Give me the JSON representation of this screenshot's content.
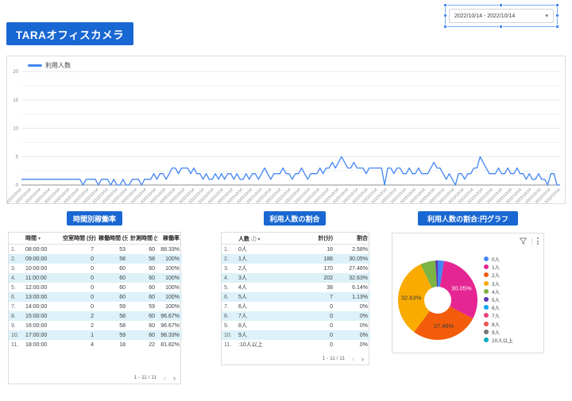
{
  "header": {
    "title": "TARAオフィスカメラ",
    "date_range_value": "2022/10/14 - 2022/10/14"
  },
  "colors": {
    "accent_blue": "#1967D2",
    "line_series": "#4285F4",
    "table_alt_row": "#DDF1F8",
    "axis_text": "#80868B"
  },
  "chart_data": [
    {
      "id": "usage-line",
      "type": "line",
      "legend_position": "top-left",
      "grid": true,
      "ylim": [
        0,
        20
      ],
      "yticks": [
        0,
        5,
        10,
        15,
        20
      ],
      "x_tick_label": "2022/10/14",
      "x_tick_count": 57,
      "series": [
        {
          "name": "利用人数",
          "color": "#4285F4",
          "values": [
            1,
            1,
            1,
            1,
            1,
            1,
            1,
            1,
            1,
            1,
            1,
            1,
            1,
            1,
            1,
            1,
            1,
            1,
            1,
            1,
            0,
            1,
            1,
            1,
            1,
            0,
            1,
            1,
            1,
            0,
            1,
            0,
            0,
            1,
            0,
            0,
            1,
            1,
            1,
            0,
            1,
            1,
            1,
            2,
            1,
            2,
            2,
            1,
            2,
            3,
            3,
            2,
            3,
            3,
            3,
            2,
            3,
            2,
            2,
            1,
            2,
            1,
            1,
            2,
            1,
            2,
            1,
            2,
            2,
            1,
            2,
            1,
            1,
            2,
            1,
            2,
            2,
            1,
            2,
            3,
            2,
            1,
            2,
            2,
            2,
            3,
            2,
            2,
            1,
            2,
            2,
            3,
            2,
            1,
            2,
            2,
            2,
            3,
            2,
            3,
            3,
            4,
            3,
            4,
            5,
            4,
            3,
            3,
            4,
            3,
            3,
            3,
            2,
            3,
            3,
            3,
            3,
            3,
            0,
            3,
            3,
            2,
            3,
            3,
            2,
            2,
            3,
            2,
            2,
            3,
            2,
            2,
            2,
            3,
            4,
            3,
            3,
            2,
            1,
            2,
            1,
            0,
            2,
            2,
            1,
            2,
            2,
            3,
            3,
            5,
            4,
            3,
            2,
            2,
            2,
            3,
            2,
            2,
            3,
            2,
            2,
            3,
            2,
            2,
            1,
            2,
            1,
            1,
            2,
            1,
            1,
            0,
            2,
            2,
            0,
            0
          ]
        }
      ]
    },
    {
      "id": "occupancy-table",
      "type": "table",
      "title": "時間別稼働率",
      "columns": [
        "時間",
        "空室時間 (分)",
        "稼働時間 (分)",
        "計測時間 (分)",
        "稼働率"
      ],
      "rows": [
        [
          "08:00:00",
          "7",
          "53",
          "60",
          "88.33%"
        ],
        [
          "09:00:00",
          "0",
          "58",
          "58",
          "100%"
        ],
        [
          "10:00:00",
          "0",
          "60",
          "60",
          "100%"
        ],
        [
          "11:00:00",
          "0",
          "60",
          "60",
          "100%"
        ],
        [
          "12:00:00",
          "0",
          "60",
          "60",
          "100%"
        ],
        [
          "13:00:00",
          "0",
          "60",
          "60",
          "100%"
        ],
        [
          "14:00:00",
          "0",
          "59",
          "59",
          "100%"
        ],
        [
          "15:00:00",
          "2",
          "58",
          "60",
          "96.67%"
        ],
        [
          "16:00:00",
          "2",
          "58",
          "60",
          "96.67%"
        ],
        [
          "17:00:00",
          "1",
          "59",
          "60",
          "98.33%"
        ],
        [
          "18:00:00",
          "4",
          "18",
          "22",
          "81.82%"
        ]
      ],
      "pagination": "1 - 11 / 11"
    },
    {
      "id": "usage-share-table",
      "type": "table",
      "title": "利用人数の割合",
      "columns": [
        "人数",
        "計(分)",
        "割合"
      ],
      "rows": [
        [
          "0人",
          "16",
          "2.58%"
        ],
        [
          "1人",
          "186",
          "30.05%"
        ],
        [
          "2人",
          "170",
          "27.46%"
        ],
        [
          "3人",
          "202",
          "32.63%"
        ],
        [
          "4人",
          "38",
          "6.14%"
        ],
        [
          "5人",
          "7",
          "1.13%"
        ],
        [
          "6人",
          "0",
          "0%"
        ],
        [
          "7人",
          "0",
          "0%"
        ],
        [
          "8人",
          "0",
          "0%"
        ],
        [
          "9人",
          "0",
          "0%"
        ],
        [
          ":10人以上",
          "0",
          "0%"
        ]
      ],
      "pagination": "1 - 11 / 11"
    },
    {
      "id": "usage-pie",
      "type": "pie",
      "title": "利用人数の割合:円グラフ",
      "donut": true,
      "labels": [
        "0人",
        "1人",
        "2人",
        "3人",
        "4人",
        "5人",
        "6人",
        "7人",
        "8人",
        "9人",
        "10人以上"
      ],
      "values": [
        2.58,
        30.05,
        27.46,
        32.63,
        6.14,
        1.13,
        0,
        0,
        0,
        0,
        0
      ],
      "colors": [
        "#4285F4",
        "#E52592",
        "#F25C0A",
        "#F9AB00",
        "#7CB342",
        "#5E35B1",
        "#03A9F4",
        "#EC407A",
        "#EF5350",
        "#757575",
        "#00ACC1"
      ],
      "slice_labels": [
        {
          "slice": 1,
          "text": "30.05%",
          "color": "#FFFFFF"
        },
        {
          "slice": 2,
          "text": "27.46%",
          "color": "#3B3B3B"
        },
        {
          "slice": 3,
          "text": "32.63%",
          "color": "#3B3B3B"
        }
      ]
    }
  ]
}
